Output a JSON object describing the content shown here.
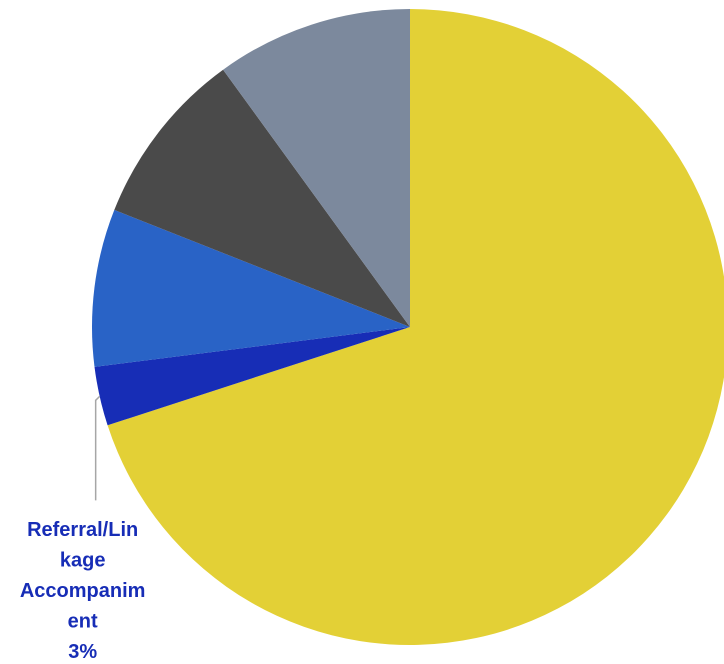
{
  "chart_data": {
    "type": "pie",
    "start_angle_deg": 0,
    "direction": "clockwise",
    "slices": [
      {
        "value": 70,
        "color": "#E3D036",
        "label": [],
        "label_color": ""
      },
      {
        "value": 3,
        "color": "#172DB6",
        "label": [
          "Referral/Lin",
          "kage",
          "Accompanim",
          "ent",
          "3%"
        ],
        "label_color": "#172DB6"
      },
      {
        "value": 8,
        "color": "#2963C6",
        "label": [],
        "label_color": ""
      },
      {
        "value": 9,
        "color": "#4A4A4A",
        "label": [],
        "label_color": ""
      },
      {
        "value": 10,
        "color": "#7C899D",
        "label": [],
        "label_color": ""
      }
    ],
    "leader_line_color": "#A6A6A6"
  }
}
